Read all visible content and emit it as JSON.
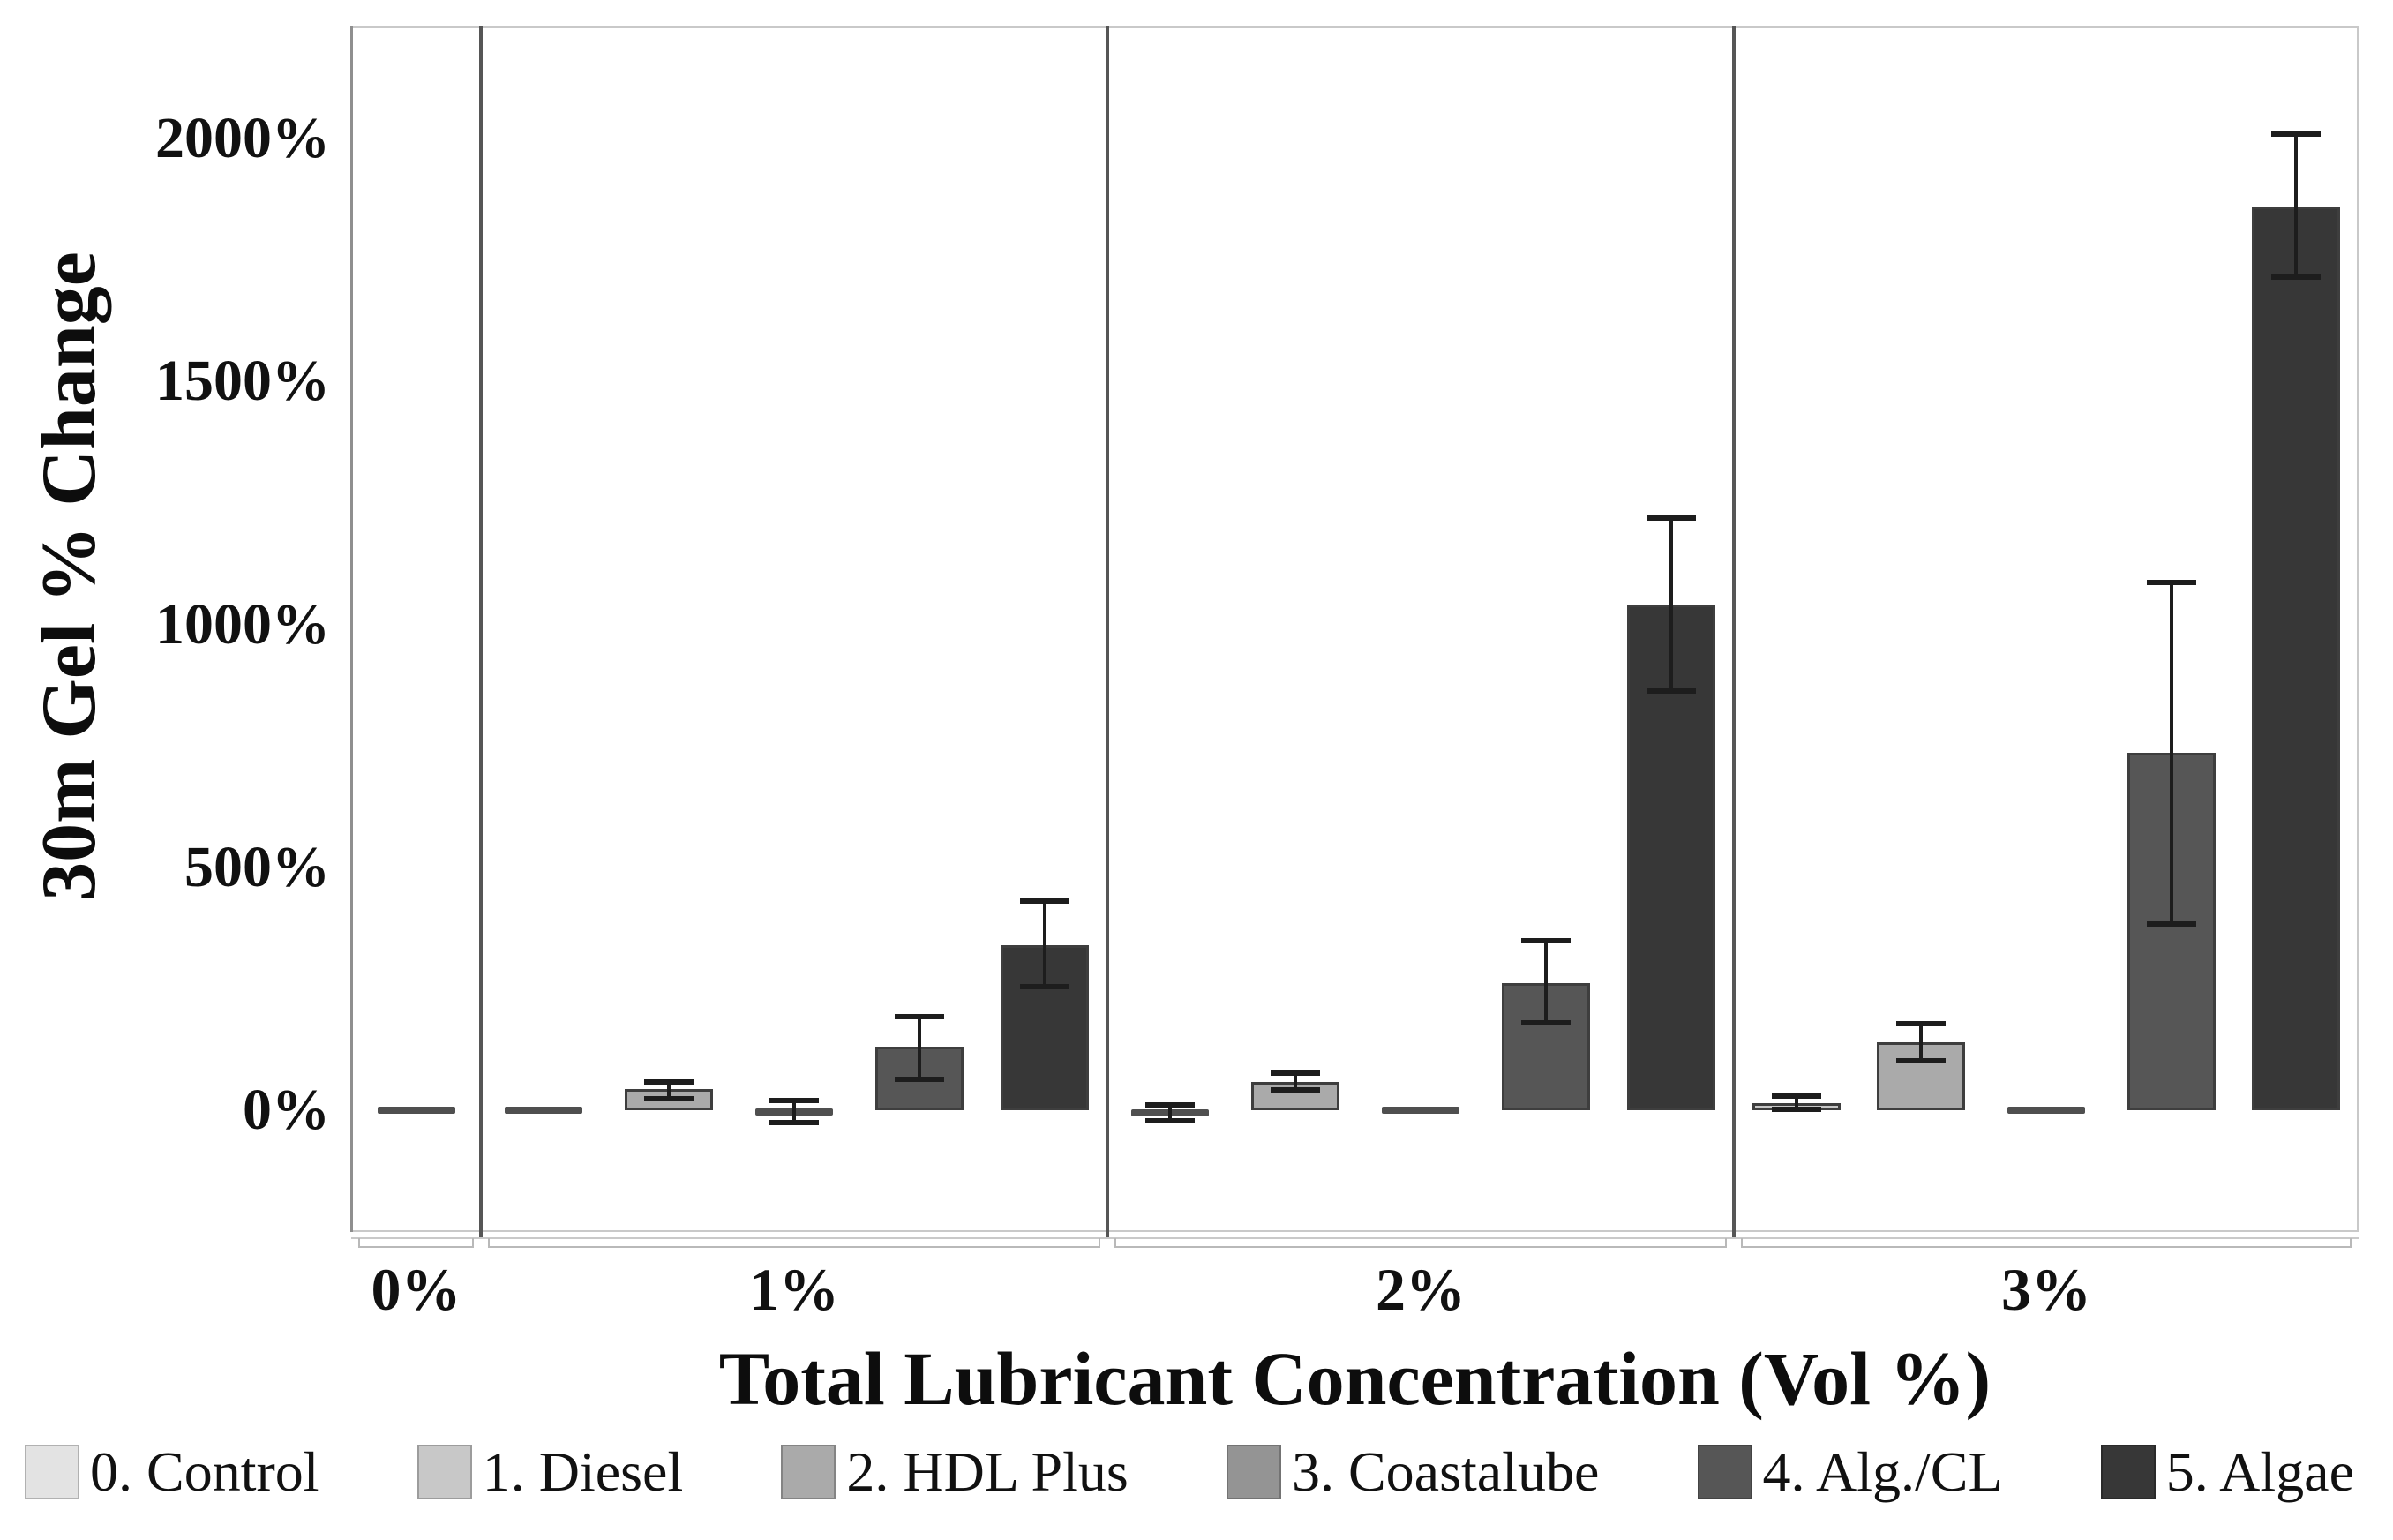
{
  "chart_data": {
    "type": "bar",
    "subtype": "grouped-panels-with-error-bars",
    "title": "",
    "xlabel": "Total Lubricant Concentration (Vol %)",
    "ylabel": "30m Gel % Change",
    "grid": "horizontal, every 100%",
    "legend_position": "bottom",
    "y_axis": {
      "unit": "%",
      "ylim": [
        -250,
        2230
      ],
      "minor_tick_step": 100,
      "tick_values": [
        0,
        500,
        1000,
        1500,
        2000
      ],
      "tick_labels": [
        "0%",
        "500%",
        "1000%",
        "1500%",
        "2000%"
      ]
    },
    "legend": [
      {
        "label": "0. Control",
        "color": "#e3e3e3"
      },
      {
        "label": "1. Diesel",
        "color": "#c8c8c8"
      },
      {
        "label": "2. HDL Plus",
        "color": "#aaaaaa"
      },
      {
        "label": "3. Coastalube",
        "color": "#949494"
      },
      {
        "label": "4. Alg./CL",
        "color": "#565656"
      },
      {
        "label": "5. Algae",
        "color": "#373737"
      }
    ],
    "panels": [
      {
        "label": "0%",
        "bars": [
          {
            "series": "0. Control",
            "value": 0,
            "err_low": null,
            "err_high": null
          }
        ]
      },
      {
        "label": "1%",
        "bars": [
          {
            "series": "1. Diesel",
            "value": 0,
            "err_low": null,
            "err_high": null
          },
          {
            "series": "2. HDL Plus",
            "value": 43,
            "err_low": 24,
            "err_high": 58
          },
          {
            "series": "3. Coastalube",
            "value": -3,
            "err_low": -25,
            "err_high": 20
          },
          {
            "series": "4. Alg./CL",
            "value": 130,
            "err_low": 64,
            "err_high": 193
          },
          {
            "series": "5. Algae",
            "value": 340,
            "err_low": 255,
            "err_high": 430
          }
        ]
      },
      {
        "label": "2%",
        "bars": [
          {
            "series": "1. Diesel",
            "value": -5,
            "err_low": -22,
            "err_high": 10
          },
          {
            "series": "2. HDL Plus",
            "value": 58,
            "err_low": 41,
            "err_high": 76
          },
          {
            "series": "3. Coastalube",
            "value": 0,
            "err_low": null,
            "err_high": null
          },
          {
            "series": "4. Alg./CL",
            "value": 262,
            "err_low": 180,
            "err_high": 348
          },
          {
            "series": "5. Algae",
            "value": 1040,
            "err_low": 863,
            "err_high": 1218
          }
        ]
      },
      {
        "label": "3%",
        "bars": [
          {
            "series": "1. Diesel",
            "value": 15,
            "err_low": 1,
            "err_high": 29
          },
          {
            "series": "2. HDL Plus",
            "value": 139,
            "err_low": 102,
            "err_high": 178
          },
          {
            "series": "3. Coastalube",
            "value": 0,
            "err_low": null,
            "err_high": null
          },
          {
            "series": "4. Alg./CL",
            "value": 735,
            "err_low": 384,
            "err_high": 1086
          },
          {
            "series": "5. Algae",
            "value": 1860,
            "err_low": 1714,
            "err_high": 2009
          }
        ]
      }
    ],
    "colors": {
      "bar_border": "#3e3e3e",
      "error_bar": "#1d1d1d",
      "panel_separator": "#565656",
      "gridline": "#e9e9e9",
      "axis": "#8f8f8f",
      "text": "#111111"
    }
  }
}
